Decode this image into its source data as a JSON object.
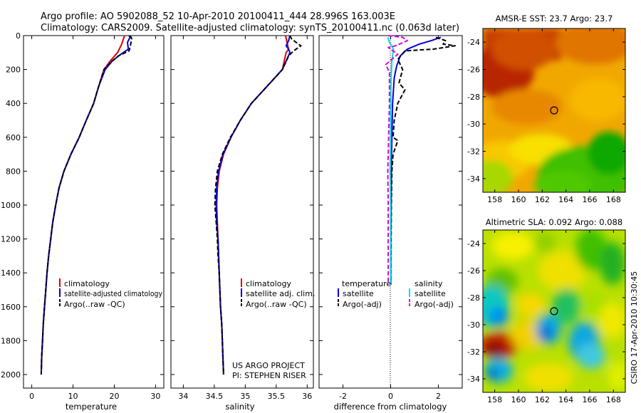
{
  "title": {
    "line1": "Argo profile: AO 5902088_52 10-Apr-2010 20100411_444 28.996S 163.003E",
    "line2": "Climatology: CARS2009. Satellite-adjusted climatology: synTS_20100411.nc (0.063d later)"
  },
  "colors": {
    "climatology": "#dd0000",
    "satellite": "#0000dd",
    "argo": "#000000",
    "sal_satellite": "#00dddd",
    "sal_argo": "#dd00dd"
  },
  "credits": {
    "project": "US ARGO PROJECT",
    "pi": "PI: STEPHEN RISER",
    "stamp": "CSIRO 17-Apr-2010 10:30:45"
  },
  "chart_data": [
    {
      "type": "line",
      "name": "temperature-profile",
      "xlabel": "temperature",
      "ylabel": "",
      "xlim": [
        -2,
        32
      ],
      "ylim": [
        2080,
        0
      ],
      "xticks": [
        "0",
        "10",
        "20",
        "30"
      ],
      "yticks": [
        "0",
        "200",
        "400",
        "600",
        "800",
        "1000",
        "1200",
        "1400",
        "1600",
        "1800",
        "2000"
      ],
      "legend": [
        "climatology",
        "satellite-adjusted climatology",
        "Argo(..raw -QC)"
      ],
      "series": [
        {
          "name": "climatology",
          "color": "#dd0000",
          "style": "solid",
          "points": [
            [
              22.5,
              0
            ],
            [
              22.2,
              20
            ],
            [
              21.8,
              50
            ],
            [
              20.8,
              100
            ],
            [
              19,
              150
            ],
            [
              17.5,
              200
            ],
            [
              16.2,
              300
            ],
            [
              15,
              400
            ],
            [
              13.2,
              500
            ],
            [
              11.5,
              600
            ],
            [
              9.5,
              700
            ],
            [
              7.8,
              800
            ],
            [
              6.6,
              900
            ],
            [
              5.8,
              1000
            ],
            [
              5.1,
              1100
            ],
            [
              4.6,
              1200
            ],
            [
              4.1,
              1300
            ],
            [
              3.7,
              1400
            ],
            [
              3.4,
              1500
            ],
            [
              3.1,
              1600
            ],
            [
              2.8,
              1700
            ],
            [
              2.6,
              1800
            ],
            [
              2.4,
              1900
            ],
            [
              2.3,
              2000
            ]
          ]
        },
        {
          "name": "satellite-adjusted climatology",
          "color": "#0000dd",
          "style": "solid",
          "points": [
            [
              23.6,
              0
            ],
            [
              23.8,
              10
            ],
            [
              23.2,
              40
            ],
            [
              23.4,
              80
            ],
            [
              21,
              120
            ],
            [
              19.5,
              150
            ],
            [
              17.8,
              200
            ],
            [
              16.2,
              300
            ],
            [
              15,
              400
            ],
            [
              13.2,
              500
            ],
            [
              11.5,
              600
            ],
            [
              9.5,
              700
            ],
            [
              7.8,
              800
            ],
            [
              6.6,
              900
            ],
            [
              5.8,
              1000
            ],
            [
              5.1,
              1100
            ],
            [
              4.6,
              1200
            ],
            [
              4.1,
              1300
            ],
            [
              3.7,
              1400
            ],
            [
              3.4,
              1500
            ],
            [
              3.1,
              1600
            ],
            [
              2.8,
              1700
            ],
            [
              2.6,
              1800
            ],
            [
              2.4,
              1900
            ],
            [
              2.3,
              2000
            ]
          ]
        },
        {
          "name": "Argo(..raw -QC)",
          "color": "#000000",
          "style": "dashed",
          "points": [
            [
              23.8,
              0
            ],
            [
              24.2,
              15
            ],
            [
              24,
              50
            ],
            [
              23.8,
              70
            ],
            [
              23.6,
              90
            ],
            [
              21,
              120
            ],
            [
              19,
              160
            ],
            [
              17.5,
              200
            ],
            [
              16.2,
              300
            ],
            [
              15,
              400
            ],
            [
              13.2,
              500
            ],
            [
              11.5,
              600
            ],
            [
              9.5,
              700
            ],
            [
              7.8,
              800
            ],
            [
              6.6,
              900
            ],
            [
              5.8,
              1000
            ],
            [
              5.1,
              1100
            ],
            [
              4.6,
              1200
            ],
            [
              4.1,
              1300
            ],
            [
              3.7,
              1400
            ],
            [
              3.4,
              1500
            ],
            [
              3.1,
              1600
            ],
            [
              2.8,
              1700
            ],
            [
              2.6,
              1800
            ],
            [
              2.4,
              1900
            ],
            [
              2.3,
              2000
            ]
          ]
        }
      ]
    },
    {
      "type": "line",
      "name": "salinity-profile",
      "xlabel": "salinity",
      "ylabel": "",
      "xlim": [
        33.8,
        36.1
      ],
      "ylim": [
        2080,
        0
      ],
      "xticks": [
        "34",
        "34.5",
        "35",
        "35.5",
        "36"
      ],
      "yticks": [],
      "legend": [
        "climatology",
        "satellite adj. clim.",
        "Argo(..raw -QC)"
      ],
      "series": [
        {
          "name": "climatology",
          "color": "#dd0000",
          "style": "solid",
          "points": [
            [
              35.65,
              0
            ],
            [
              35.68,
              50
            ],
            [
              35.7,
              80
            ],
            [
              35.66,
              100
            ],
            [
              35.6,
              200
            ],
            [
              35.35,
              300
            ],
            [
              35.1,
              400
            ],
            [
              34.92,
              500
            ],
            [
              34.77,
              600
            ],
            [
              34.65,
              700
            ],
            [
              34.58,
              800
            ],
            [
              34.55,
              900
            ],
            [
              34.54,
              1000
            ],
            [
              34.55,
              1100
            ],
            [
              34.56,
              1200
            ],
            [
              34.57,
              1300
            ],
            [
              34.58,
              1400
            ],
            [
              34.59,
              1500
            ],
            [
              34.6,
              1600
            ],
            [
              34.62,
              1700
            ],
            [
              34.63,
              1800
            ],
            [
              34.64,
              1900
            ],
            [
              34.65,
              2000
            ]
          ]
        },
        {
          "name": "satellite adj. clim.",
          "color": "#0000dd",
          "style": "solid",
          "points": [
            [
              35.72,
              0
            ],
            [
              35.7,
              30
            ],
            [
              35.66,
              60
            ],
            [
              35.7,
              80
            ],
            [
              35.72,
              100
            ],
            [
              35.6,
              200
            ],
            [
              35.35,
              300
            ],
            [
              35.1,
              400
            ],
            [
              34.92,
              500
            ],
            [
              34.77,
              600
            ],
            [
              34.64,
              700
            ],
            [
              34.57,
              800
            ],
            [
              34.54,
              900
            ],
            [
              34.53,
              1000
            ],
            [
              34.54,
              1100
            ],
            [
              34.56,
              1200
            ],
            [
              34.57,
              1300
            ],
            [
              34.58,
              1400
            ],
            [
              34.59,
              1500
            ],
            [
              34.6,
              1600
            ],
            [
              34.62,
              1700
            ],
            [
              34.63,
              1800
            ],
            [
              34.64,
              1900
            ],
            [
              34.65,
              2000
            ]
          ]
        },
        {
          "name": "Argo(..raw -QC)",
          "color": "#000000",
          "style": "dashed",
          "points": [
            [
              35.72,
              0
            ],
            [
              35.75,
              20
            ],
            [
              35.82,
              40
            ],
            [
              35.9,
              60
            ],
            [
              35.78,
              90
            ],
            [
              35.7,
              120
            ],
            [
              35.6,
              200
            ],
            [
              35.35,
              300
            ],
            [
              35.1,
              400
            ],
            [
              34.92,
              500
            ],
            [
              34.76,
              600
            ],
            [
              34.63,
              700
            ],
            [
              34.55,
              800
            ],
            [
              34.52,
              900
            ],
            [
              34.51,
              1000
            ],
            [
              34.53,
              1100
            ],
            [
              34.55,
              1200
            ],
            [
              34.56,
              1300
            ],
            [
              34.58,
              1400
            ],
            [
              34.59,
              1500
            ],
            [
              34.6,
              1600
            ],
            [
              34.62,
              1700
            ],
            [
              34.63,
              1800
            ],
            [
              34.64,
              1900
            ],
            [
              34.65,
              2000
            ]
          ]
        }
      ]
    },
    {
      "type": "line",
      "name": "difference-profile",
      "xlabel": "difference from climatology",
      "ylabel": "",
      "xlim": [
        -3,
        3
      ],
      "ylim": [
        2080,
        0
      ],
      "xticks": [
        "-2",
        "0",
        "2"
      ],
      "yticks": [],
      "legend_left": {
        "header": "temperature",
        "entries": [
          "satellite",
          "Argo(-adj)"
        ]
      },
      "legend_right": {
        "header": "salinity",
        "entries": [
          "satellite",
          "Argo(-adj)"
        ]
      },
      "series": [
        {
          "name": "temperature satellite",
          "color": "#0000dd",
          "style": "solid",
          "points": [
            [
              2.1,
              10
            ],
            [
              1.7,
              30
            ],
            [
              1.2,
              50
            ],
            [
              0.7,
              80
            ],
            [
              0.4,
              120
            ],
            [
              0.25,
              180
            ],
            [
              0.15,
              250
            ],
            [
              0.08,
              400
            ],
            [
              0.05,
              600
            ],
            [
              0.03,
              800
            ],
            [
              0.02,
              1000
            ],
            [
              0.01,
              1200
            ],
            [
              0.01,
              1400
            ],
            [
              0.01,
              1470
            ]
          ]
        },
        {
          "name": "temperature Argo(-adj)",
          "color": "#000000",
          "style": "dashed",
          "points": [
            [
              1.9,
              10
            ],
            [
              2.3,
              30
            ],
            [
              2.2,
              50
            ],
            [
              2.7,
              60
            ],
            [
              1.8,
              80
            ],
            [
              0.6,
              90
            ],
            [
              0.3,
              140
            ],
            [
              0.5,
              200
            ],
            [
              0.35,
              280
            ],
            [
              0.6,
              320
            ],
            [
              0.3,
              400
            ],
            [
              0.15,
              500
            ],
            [
              0.1,
              600
            ],
            [
              0.3,
              620
            ],
            [
              0.1,
              700
            ],
            [
              0.05,
              800
            ],
            [
              0.03,
              1000
            ],
            [
              0.02,
              1200
            ],
            [
              0.01,
              1400
            ],
            [
              0.01,
              1470
            ]
          ]
        },
        {
          "name": "salinity satellite",
          "color": "#00dddd",
          "style": "solid",
          "points": [
            [
              -0.12,
              10
            ],
            [
              -0.05,
              40
            ],
            [
              0.12,
              80
            ],
            [
              0.05,
              150
            ],
            [
              0.02,
              250
            ],
            [
              0.0,
              400
            ],
            [
              0.0,
              600
            ],
            [
              -0.02,
              800
            ],
            [
              0.0,
              1000
            ],
            [
              0.0,
              1470
            ]
          ]
        },
        {
          "name": "salinity Argo(-adj)",
          "color": "#dd00dd",
          "style": "dashed",
          "points": [
            [
              -0.1,
              0
            ],
            [
              0.5,
              10
            ],
            [
              0.7,
              30
            ],
            [
              0.2,
              60
            ],
            [
              -0.1,
              70
            ],
            [
              0.1,
              90
            ],
            [
              0.3,
              110
            ],
            [
              -0.2,
              170
            ],
            [
              -0.05,
              220
            ],
            [
              -0.05,
              400
            ],
            [
              -0.1,
              700
            ],
            [
              -0.12,
              800
            ],
            [
              -0.1,
              1000
            ],
            [
              -0.1,
              1400
            ],
            [
              -0.1,
              1470
            ]
          ]
        }
      ]
    },
    {
      "type": "heatmap",
      "name": "sst-map",
      "title": "AMSR-E SST: 23.7 Argo: 23.7",
      "xlim": [
        157,
        169
      ],
      "ylim": [
        -35,
        -23
      ],
      "xticks": [
        "158",
        "160",
        "162",
        "164",
        "166",
        "168"
      ],
      "yticks": [
        "-24",
        "-26",
        "-28",
        "-30",
        "-32",
        "-34"
      ],
      "marker": {
        "lon": 163.0,
        "lat": -29.0
      }
    },
    {
      "type": "heatmap",
      "name": "sla-map",
      "title": "Altimetric SLA: 0.092 Argo: 0.088",
      "xlim": [
        157,
        169
      ],
      "ylim": [
        -35,
        -23
      ],
      "xticks": [
        "158",
        "160",
        "162",
        "164",
        "166",
        "168"
      ],
      "yticks": [
        "-24",
        "-26",
        "-28",
        "-30",
        "-32",
        "-34"
      ],
      "marker": {
        "lon": 163.0,
        "lat": -29.0
      }
    }
  ]
}
